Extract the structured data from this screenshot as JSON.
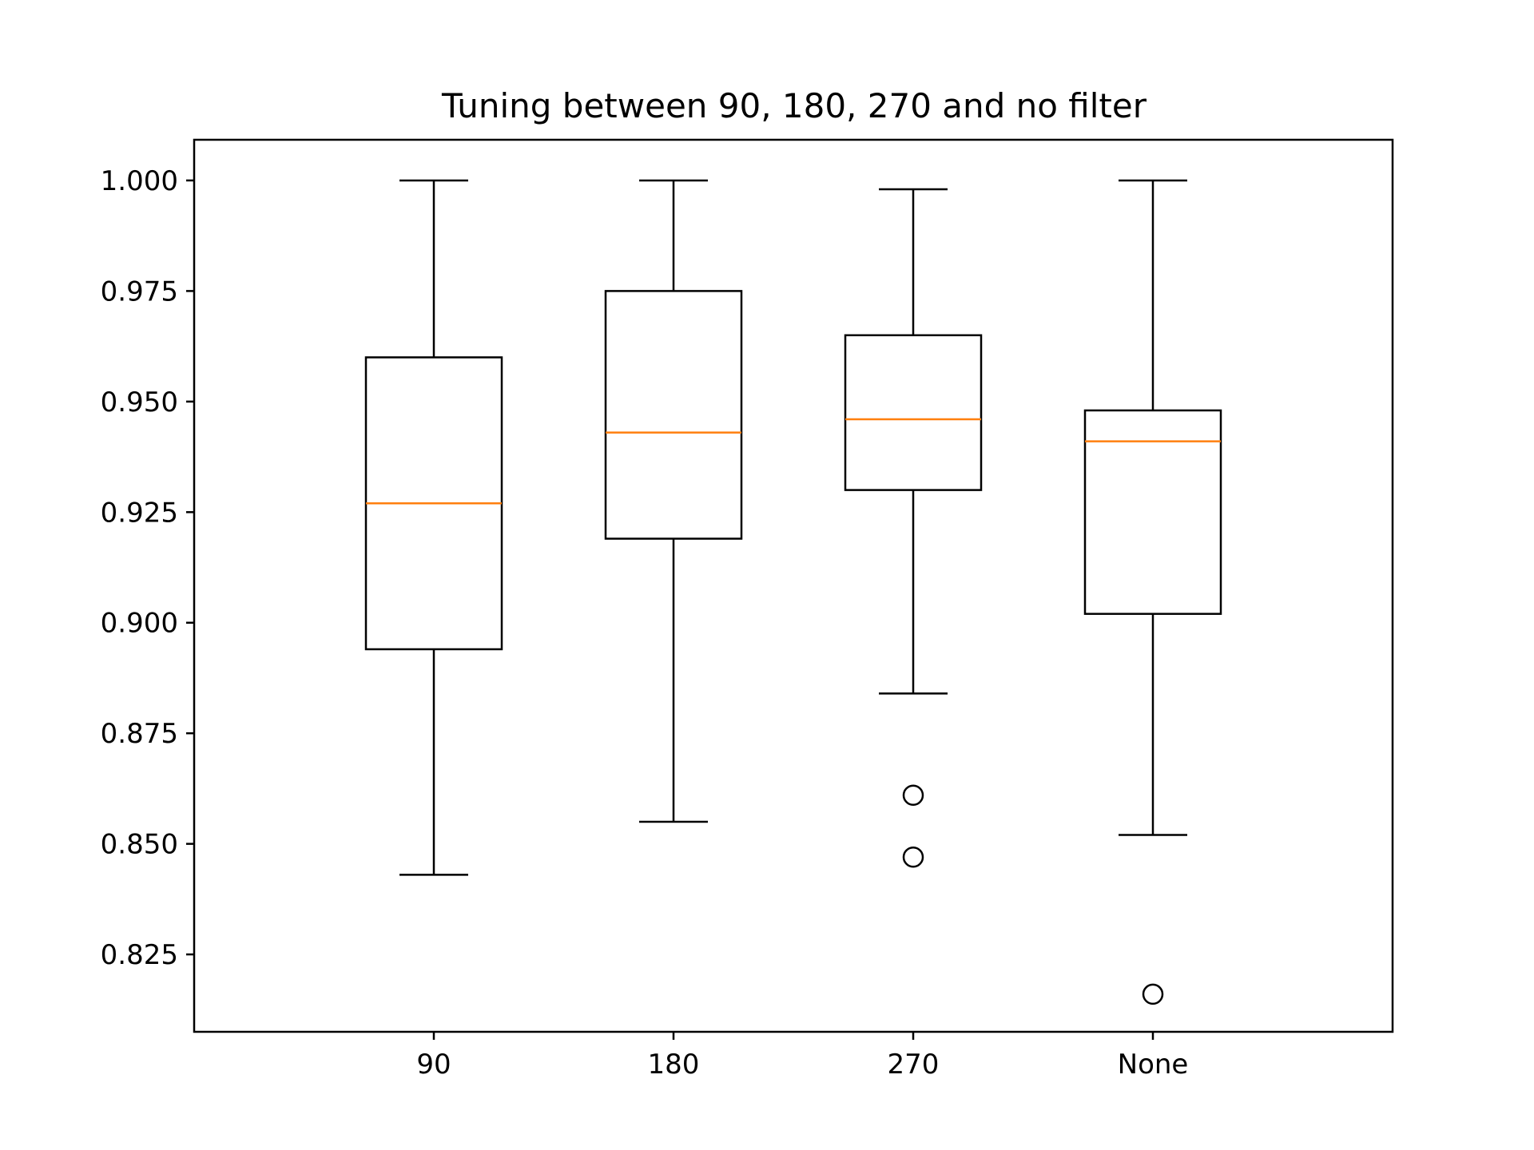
{
  "chart_data": {
    "type": "box",
    "title": "Tuning between 90, 180, 270 and no filter",
    "xlabel": "",
    "ylabel": "",
    "categories": [
      "90",
      "180",
      "270",
      "None"
    ],
    "ylim": [
      0.8075,
      1.0092
    ],
    "yticks": [
      "0.825",
      "0.850",
      "0.875",
      "0.900",
      "0.925",
      "0.950",
      "0.975",
      "1.000"
    ],
    "grid": false,
    "boxes": [
      {
        "label": "90",
        "whisker_low": 0.843,
        "q1": 0.894,
        "median": 0.927,
        "q3": 0.96,
        "whisker_high": 1.0,
        "outliers": []
      },
      {
        "label": "180",
        "whisker_low": 0.855,
        "q1": 0.919,
        "median": 0.943,
        "q3": 0.975,
        "whisker_high": 1.0,
        "outliers": []
      },
      {
        "label": "270",
        "whisker_low": 0.884,
        "q1": 0.93,
        "median": 0.946,
        "q3": 0.965,
        "whisker_high": 0.998,
        "outliers": [
          0.861,
          0.847
        ]
      },
      {
        "label": "None",
        "whisker_low": 0.852,
        "q1": 0.902,
        "median": 0.941,
        "q3": 0.948,
        "whisker_high": 1.0,
        "outliers": [
          0.816
        ]
      }
    ],
    "colors": {
      "box": "#000000",
      "median": "#ff7f0e",
      "background": "#ffffff"
    }
  }
}
